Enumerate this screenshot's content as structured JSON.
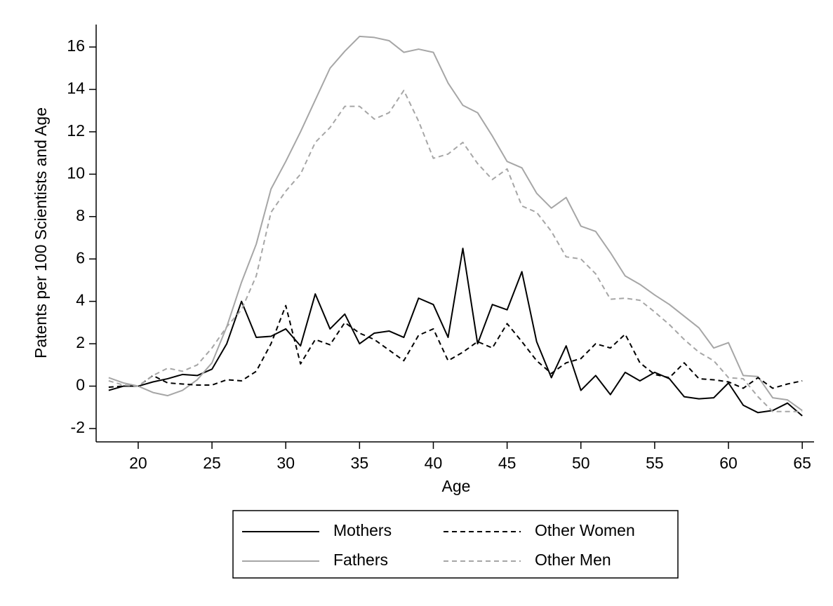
{
  "chart_data": {
    "type": "line",
    "x_label": "Age",
    "y_label": "Patents per 100 Scientists and Age",
    "x": [
      18,
      19,
      20,
      21,
      22,
      23,
      24,
      25,
      26,
      27,
      28,
      29,
      30,
      31,
      32,
      33,
      34,
      35,
      36,
      37,
      38,
      39,
      40,
      41,
      42,
      43,
      44,
      45,
      46,
      47,
      48,
      49,
      50,
      51,
      52,
      53,
      54,
      55,
      56,
      57,
      58,
      59,
      60,
      61,
      62,
      63,
      64,
      65
    ],
    "series": [
      {
        "name": "Mothers",
        "color": "#000000",
        "dashed": false,
        "values": [
          -0.2,
          0,
          0,
          0.2,
          0.35,
          0.55,
          0.5,
          0.8,
          2.0,
          4.0,
          2.3,
          2.35,
          2.7,
          1.9,
          4.35,
          2.7,
          3.4,
          2.0,
          2.5,
          2.6,
          2.3,
          4.15,
          3.85,
          2.3,
          6.5,
          2.0,
          3.85,
          3.6,
          5.4,
          2.1,
          0.4,
          1.9,
          -0.2,
          0.5,
          -0.4,
          0.65,
          0.25,
          0.65,
          0.35,
          -0.5,
          -0.6,
          -0.55,
          0.15,
          -0.9,
          -1.25,
          -1.15,
          -0.8,
          -1.4
        ]
      },
      {
        "name": "Fathers",
        "color": "#a6a6a6",
        "dashed": false,
        "values": [
          0.4,
          0.15,
          0,
          -0.3,
          -0.45,
          -0.2,
          0.3,
          1.1,
          2.8,
          4.9,
          6.7,
          9.3,
          10.6,
          12.0,
          13.5,
          15.0,
          15.8,
          16.5,
          16.45,
          16.3,
          15.75,
          15.9,
          15.75,
          14.3,
          13.25,
          12.9,
          11.8,
          10.6,
          10.3,
          9.1,
          8.4,
          8.9,
          7.55,
          7.3,
          6.3,
          5.2,
          4.8,
          4.3,
          3.85,
          3.3,
          2.75,
          1.8,
          2.05,
          0.5,
          0.45,
          -0.55,
          -0.65,
          -1.15
        ]
      },
      {
        "name": "Other Women",
        "color": "#000000",
        "dashed": true,
        "values": [
          -0.05,
          0,
          0,
          0.5,
          0.15,
          0.1,
          0.05,
          0.05,
          0.3,
          0.25,
          0.7,
          2.0,
          3.8,
          1.05,
          2.2,
          1.95,
          3.0,
          2.5,
          2.2,
          1.7,
          1.2,
          2.4,
          2.7,
          1.2,
          1.6,
          2.1,
          1.8,
          2.95,
          2.1,
          1.2,
          0.6,
          1.1,
          1.3,
          2.0,
          1.8,
          2.45,
          1.1,
          0.55,
          0.4,
          1.1,
          0.35,
          0.3,
          0.2,
          -0.1,
          0.4,
          -0.1,
          0.1,
          0.25
        ]
      },
      {
        "name": "Other Men",
        "color": "#a6a6a6",
        "dashed": true,
        "values": [
          0.25,
          0.05,
          0,
          0.5,
          0.85,
          0.7,
          1.0,
          1.8,
          2.8,
          3.6,
          5.2,
          8.2,
          9.2,
          10.0,
          11.5,
          12.2,
          13.2,
          13.2,
          12.6,
          12.9,
          13.95,
          12.5,
          10.75,
          10.95,
          11.5,
          10.5,
          9.75,
          10.25,
          8.5,
          8.2,
          7.3,
          6.1,
          6.0,
          5.3,
          4.1,
          4.15,
          4.05,
          3.5,
          2.9,
          2.2,
          1.6,
          1.2,
          0.4,
          0.35,
          -0.5,
          -1.2,
          -1.2,
          -1.2
        ]
      }
    ],
    "xlim": [
      17.15,
      65.8
    ],
    "xticks": [
      20,
      25,
      30,
      35,
      40,
      45,
      50,
      55,
      60,
      65
    ],
    "ylim": [
      -2.63,
      17.06
    ],
    "yticks": [
      -2,
      0,
      2,
      4,
      6,
      8,
      10,
      12,
      14,
      16
    ],
    "grid": false,
    "legend": "bottom"
  }
}
